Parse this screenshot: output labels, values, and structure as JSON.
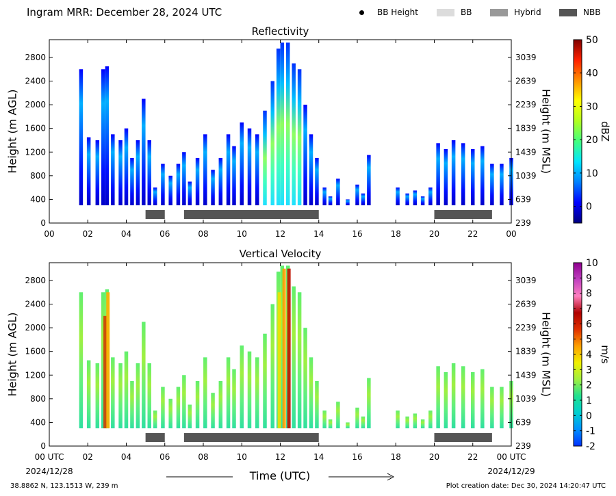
{
  "header": {
    "title": "Ingram MRR:  December 28, 2024 UTC",
    "legend": [
      {
        "label": "BB Height",
        "marker": "dot",
        "color": "#000000"
      },
      {
        "label": "BB",
        "marker": "box",
        "color": "#dcdcdc"
      },
      {
        "label": "Hybrid",
        "marker": "box",
        "color": "#999999"
      },
      {
        "label": "NBB",
        "marker": "box",
        "color": "#555555"
      }
    ]
  },
  "chart_data": [
    {
      "type": "heatmap",
      "title": "Reflectivity",
      "ylabel": "Height (m AGL)",
      "ylabel_right": "Height (m MSL)",
      "x_ticks": [
        "00",
        "02",
        "04",
        "06",
        "08",
        "10",
        "12",
        "14",
        "16",
        "18",
        "20",
        "22",
        "00"
      ],
      "y_ticks_left": [
        "0",
        "400",
        "800",
        "1200",
        "1600",
        "2000",
        "2400",
        "2800"
      ],
      "y_ticks_right": [
        "239",
        "639",
        "1039",
        "1439",
        "1839",
        "2239",
        "2639",
        "3039"
      ],
      "xlim": [
        0,
        24
      ],
      "ylim": [
        0,
        3100
      ],
      "colorbar": {
        "label": "dBZ",
        "ticks": [
          "0",
          "10",
          "20",
          "30",
          "40",
          "50"
        ],
        "range": [
          -5,
          50
        ],
        "colors": [
          "#000080",
          "#0000ff",
          "#0080ff",
          "#00e5ff",
          "#40ff80",
          "#b0ff20",
          "#ffff00",
          "#ff9000",
          "#ff2000",
          "#800000"
        ]
      },
      "precip_type_bars": [
        {
          "type": "NBB",
          "start": 5.0,
          "end": 6.0
        },
        {
          "type": "NBB",
          "start": 7.0,
          "end": 14.0
        },
        {
          "type": "NBB",
          "start": 20.0,
          "end": 23.0
        }
      ],
      "echo_tops": [
        {
          "t": 1.65,
          "top": 2600
        },
        {
          "t": 2.05,
          "top": 1450
        },
        {
          "t": 2.5,
          "top": 1400
        },
        {
          "t": 2.8,
          "top": 2600
        },
        {
          "t": 3.0,
          "top": 2650
        },
        {
          "t": 3.3,
          "top": 1500
        },
        {
          "t": 3.7,
          "top": 1400
        },
        {
          "t": 4.0,
          "top": 1600
        },
        {
          "t": 4.3,
          "top": 1100
        },
        {
          "t": 4.6,
          "top": 1400
        },
        {
          "t": 4.9,
          "top": 2100
        },
        {
          "t": 5.2,
          "top": 1400
        },
        {
          "t": 5.5,
          "top": 600
        },
        {
          "t": 5.9,
          "top": 1000
        },
        {
          "t": 6.3,
          "top": 800
        },
        {
          "t": 6.7,
          "top": 1000
        },
        {
          "t": 7.0,
          "top": 1200
        },
        {
          "t": 7.3,
          "top": 700
        },
        {
          "t": 7.7,
          "top": 1100
        },
        {
          "t": 8.1,
          "top": 1500
        },
        {
          "t": 8.5,
          "top": 900
        },
        {
          "t": 8.9,
          "top": 1100
        },
        {
          "t": 9.3,
          "top": 1500
        },
        {
          "t": 9.6,
          "top": 1300
        },
        {
          "t": 10.0,
          "top": 1700
        },
        {
          "t": 10.4,
          "top": 1600
        },
        {
          "t": 10.8,
          "top": 1500
        },
        {
          "t": 11.2,
          "top": 1900
        },
        {
          "t": 11.6,
          "top": 2400
        },
        {
          "t": 11.9,
          "top": 2950
        },
        {
          "t": 12.1,
          "top": 3050
        },
        {
          "t": 12.4,
          "top": 3050
        },
        {
          "t": 12.7,
          "top": 2700
        },
        {
          "t": 13.0,
          "top": 2600
        },
        {
          "t": 13.3,
          "top": 2000
        },
        {
          "t": 13.6,
          "top": 1500
        },
        {
          "t": 13.9,
          "top": 1100
        },
        {
          "t": 14.3,
          "top": 600
        },
        {
          "t": 14.6,
          "top": 450
        },
        {
          "t": 15.0,
          "top": 750
        },
        {
          "t": 15.5,
          "top": 400
        },
        {
          "t": 16.0,
          "top": 650
        },
        {
          "t": 16.3,
          "top": 500
        },
        {
          "t": 16.6,
          "top": 1150
        },
        {
          "t": 17.0,
          "top": 0
        },
        {
          "t": 18.1,
          "top": 600
        },
        {
          "t": 18.6,
          "top": 500
        },
        {
          "t": 19.0,
          "top": 550
        },
        {
          "t": 19.4,
          "top": 450
        },
        {
          "t": 19.8,
          "top": 600
        },
        {
          "t": 20.2,
          "top": 1350
        },
        {
          "t": 20.6,
          "top": 1250
        },
        {
          "t": 21.0,
          "top": 1400
        },
        {
          "t": 21.5,
          "top": 1350
        },
        {
          "t": 22.0,
          "top": 1250
        },
        {
          "t": 22.5,
          "top": 1300
        },
        {
          "t": 23.0,
          "top": 1000
        },
        {
          "t": 23.5,
          "top": 1000
        },
        {
          "t": 24.0,
          "top": 1100
        }
      ]
    },
    {
      "type": "heatmap",
      "title": "Vertical Velocity",
      "ylabel": "Height (m AGL)",
      "ylabel_right": "Height (m MSL)",
      "x_ticks": [
        "00 UTC",
        "02",
        "04",
        "06",
        "08",
        "10",
        "12",
        "14",
        "16",
        "18",
        "20",
        "22",
        "00 UTC"
      ],
      "x_sublabels": [
        "2024/12/28",
        "2024/12/29"
      ],
      "xlabel": "Time (UTC)",
      "y_ticks_left": [
        "0",
        "400",
        "800",
        "1200",
        "1600",
        "2000",
        "2400",
        "2800"
      ],
      "y_ticks_right": [
        "239",
        "639",
        "1039",
        "1439",
        "1839",
        "2239",
        "2639",
        "3039"
      ],
      "xlim": [
        0,
        24
      ],
      "ylim": [
        0,
        3100
      ],
      "colorbar": {
        "label": "m/s",
        "ticks": [
          "-2",
          "-1",
          "0",
          "1",
          "2",
          "3",
          "4",
          "5",
          "6",
          "7",
          "8",
          "9",
          "10"
        ],
        "range": [
          -2,
          10
        ],
        "colors": [
          "#0030ff",
          "#0090ff",
          "#00d0d0",
          "#20e090",
          "#a0f040",
          "#f0f000",
          "#ffa000",
          "#e03000",
          "#b00000",
          "#ff80c0",
          "#c040c0",
          "#900090"
        ]
      },
      "precip_type_bars": [
        {
          "type": "NBB",
          "start": 5.0,
          "end": 6.0
        },
        {
          "type": "NBB",
          "start": 7.0,
          "end": 14.0
        },
        {
          "type": "NBB",
          "start": 20.0,
          "end": 23.0
        }
      ]
    }
  ],
  "footer": {
    "location": "38.8862 N, 123.1513 W, 239 m",
    "creation": "Plot creation date: Dec 30, 2024 14:20:47 UTC"
  }
}
